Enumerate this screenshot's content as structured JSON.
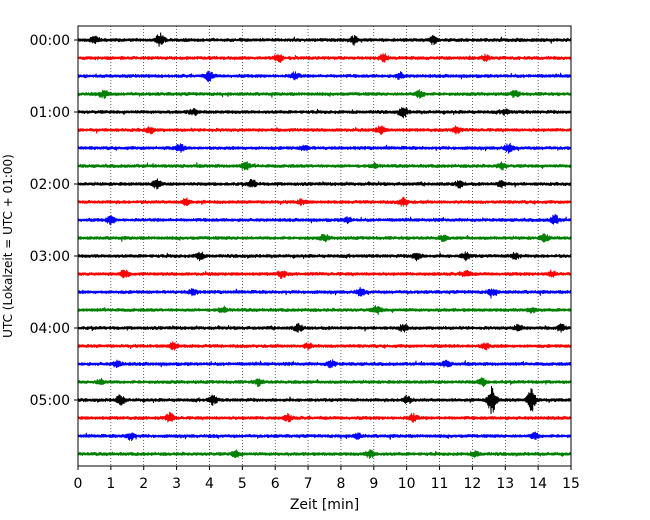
{
  "chart_data": {
    "type": "line",
    "title": "",
    "xlabel": "Zeit  [min]",
    "ylabel": "UTC (Lokalzeit = UTC + 01:00)",
    "xlim": [
      0,
      15
    ],
    "x_ticks": [
      "0",
      "1",
      "2",
      "3",
      "4",
      "5",
      "6",
      "7",
      "8",
      "9",
      "10",
      "11",
      "12",
      "13",
      "14",
      "15"
    ],
    "y_tick_labels": [
      "00:00",
      "01:00",
      "02:00",
      "03:00",
      "04:00",
      "05:00"
    ],
    "y_tick_rows": [
      0,
      4,
      8,
      12,
      16,
      20
    ],
    "x_grid": "dotted vertical lines at each minute",
    "color_cycle": [
      "#000000",
      "#ff0000",
      "#0000ff",
      "#008000"
    ],
    "minutes_per_trace": 15,
    "trace_count": 24,
    "traces": [
      {
        "start": "00:00",
        "color": "#000000",
        "events": [
          {
            "t": 2.5,
            "amp": 1.0
          },
          {
            "t": 0.5,
            "amp": 0.6
          },
          {
            "t": 8.4,
            "amp": 0.6
          },
          {
            "t": 10.8,
            "amp": 0.6
          }
        ]
      },
      {
        "start": "00:15",
        "color": "#ff0000",
        "events": [
          {
            "t": 6.1,
            "amp": 0.7
          },
          {
            "t": 9.3,
            "amp": 0.6
          },
          {
            "t": 12.4,
            "amp": 0.5
          }
        ]
      },
      {
        "start": "00:30",
        "color": "#0000ff",
        "events": [
          {
            "t": 4.0,
            "amp": 0.8
          },
          {
            "t": 6.6,
            "amp": 0.6
          },
          {
            "t": 9.8,
            "amp": 0.5
          }
        ]
      },
      {
        "start": "00:45",
        "color": "#008000",
        "events": [
          {
            "t": 0.8,
            "amp": 0.6
          },
          {
            "t": 10.4,
            "amp": 0.6
          },
          {
            "t": 13.3,
            "amp": 0.5
          }
        ]
      },
      {
        "start": "01:00",
        "color": "#000000",
        "events": [
          {
            "t": 9.9,
            "amp": 0.8
          },
          {
            "t": 3.5,
            "amp": 0.5
          },
          {
            "t": 13.0,
            "amp": 0.4
          }
        ]
      },
      {
        "start": "01:15",
        "color": "#ff0000",
        "events": [
          {
            "t": 9.2,
            "amp": 0.6
          },
          {
            "t": 2.2,
            "amp": 0.5
          },
          {
            "t": 11.5,
            "amp": 0.5
          }
        ]
      },
      {
        "start": "01:30",
        "color": "#0000ff",
        "events": [
          {
            "t": 3.1,
            "amp": 0.6
          },
          {
            "t": 13.1,
            "amp": 0.6
          },
          {
            "t": 6.9,
            "amp": 0.4
          }
        ]
      },
      {
        "start": "01:45",
        "color": "#008000",
        "events": [
          {
            "t": 5.1,
            "amp": 0.6
          },
          {
            "t": 12.9,
            "amp": 0.5
          },
          {
            "t": 9.0,
            "amp": 0.4
          }
        ]
      },
      {
        "start": "02:00",
        "color": "#000000",
        "events": [
          {
            "t": 2.4,
            "amp": 0.7
          },
          {
            "t": 5.3,
            "amp": 0.6
          },
          {
            "t": 11.6,
            "amp": 0.5
          },
          {
            "t": 12.9,
            "amp": 0.5
          }
        ]
      },
      {
        "start": "02:15",
        "color": "#ff0000",
        "events": [
          {
            "t": 9.9,
            "amp": 0.7
          },
          {
            "t": 3.3,
            "amp": 0.5
          },
          {
            "t": 6.8,
            "amp": 0.4
          }
        ]
      },
      {
        "start": "02:30",
        "color": "#0000ff",
        "events": [
          {
            "t": 14.5,
            "amp": 0.7
          },
          {
            "t": 1.0,
            "amp": 0.6
          },
          {
            "t": 8.2,
            "amp": 0.4
          }
        ]
      },
      {
        "start": "02:45",
        "color": "#008000",
        "events": [
          {
            "t": 14.2,
            "amp": 0.6
          },
          {
            "t": 7.5,
            "amp": 0.5
          },
          {
            "t": 11.1,
            "amp": 0.4
          }
        ]
      },
      {
        "start": "03:00",
        "color": "#000000",
        "events": [
          {
            "t": 3.7,
            "amp": 0.6
          },
          {
            "t": 10.3,
            "amp": 0.6
          },
          {
            "t": 11.8,
            "amp": 0.6
          },
          {
            "t": 13.3,
            "amp": 0.5
          }
        ]
      },
      {
        "start": "03:15",
        "color": "#ff0000",
        "events": [
          {
            "t": 6.2,
            "amp": 0.6
          },
          {
            "t": 1.4,
            "amp": 0.6
          },
          {
            "t": 11.8,
            "amp": 0.5
          },
          {
            "t": 14.4,
            "amp": 0.5
          }
        ]
      },
      {
        "start": "03:30",
        "color": "#0000ff",
        "events": [
          {
            "t": 12.6,
            "amp": 0.6
          },
          {
            "t": 3.5,
            "amp": 0.5
          },
          {
            "t": 8.6,
            "amp": 0.5
          }
        ]
      },
      {
        "start": "03:45",
        "color": "#008000",
        "events": [
          {
            "t": 9.1,
            "amp": 0.6
          },
          {
            "t": 4.4,
            "amp": 0.5
          },
          {
            "t": 13.8,
            "amp": 0.4
          }
        ]
      },
      {
        "start": "04:00",
        "color": "#000000",
        "events": [
          {
            "t": 6.7,
            "amp": 0.6
          },
          {
            "t": 9.9,
            "amp": 0.5
          },
          {
            "t": 13.4,
            "amp": 0.5
          },
          {
            "t": 14.7,
            "amp": 0.5
          }
        ]
      },
      {
        "start": "04:15",
        "color": "#ff0000",
        "events": [
          {
            "t": 2.9,
            "amp": 0.6
          },
          {
            "t": 12.4,
            "amp": 0.5
          },
          {
            "t": 7.0,
            "amp": 0.4
          }
        ]
      },
      {
        "start": "04:30",
        "color": "#0000ff",
        "events": [
          {
            "t": 7.7,
            "amp": 0.6
          },
          {
            "t": 1.2,
            "amp": 0.5
          },
          {
            "t": 11.2,
            "amp": 0.5
          }
        ]
      },
      {
        "start": "04:45",
        "color": "#008000",
        "events": [
          {
            "t": 12.3,
            "amp": 0.6
          },
          {
            "t": 5.5,
            "amp": 0.5
          },
          {
            "t": 0.7,
            "amp": 0.4
          }
        ]
      },
      {
        "start": "05:00",
        "color": "#000000",
        "events": [
          {
            "t": 12.6,
            "amp": 2.2
          },
          {
            "t": 13.8,
            "amp": 2.0
          },
          {
            "t": 1.3,
            "amp": 0.8
          },
          {
            "t": 4.1,
            "amp": 0.7
          },
          {
            "t": 10.0,
            "amp": 0.6
          }
        ]
      },
      {
        "start": "05:15",
        "color": "#ff0000",
        "events": [
          {
            "t": 2.8,
            "amp": 0.7
          },
          {
            "t": 10.2,
            "amp": 0.7
          },
          {
            "t": 6.4,
            "amp": 0.5
          }
        ]
      },
      {
        "start": "05:30",
        "color": "#0000ff",
        "events": [
          {
            "t": 1.6,
            "amp": 0.6
          },
          {
            "t": 13.9,
            "amp": 0.5
          },
          {
            "t": 8.5,
            "amp": 0.4
          }
        ]
      },
      {
        "start": "05:45",
        "color": "#008000",
        "events": [
          {
            "t": 8.9,
            "amp": 0.6
          },
          {
            "t": 4.8,
            "amp": 0.5
          },
          {
            "t": 12.1,
            "amp": 0.4
          }
        ]
      }
    ]
  }
}
